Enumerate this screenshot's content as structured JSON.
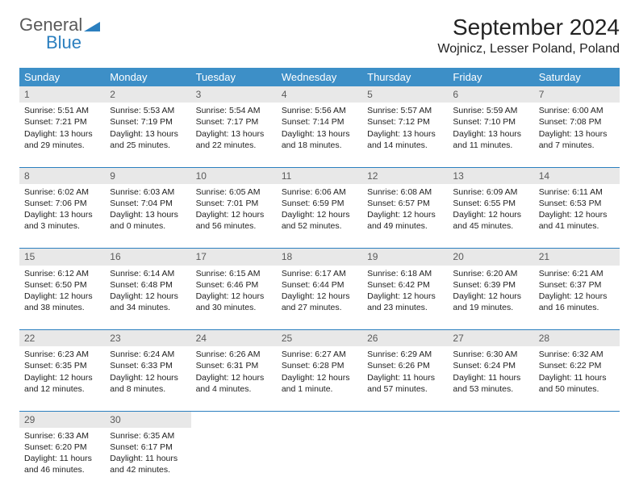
{
  "logo": {
    "part1": "General",
    "part2": "Blue"
  },
  "title": "September 2024",
  "location": "Wojnicz, Lesser Poland, Poland",
  "colors": {
    "header_bg": "#3d8fc7",
    "header_text": "#ffffff",
    "daynum_bg": "#e8e8e8",
    "daynum_text": "#5a5a5a",
    "rule": "#2b7fbf",
    "logo_gray": "#5a5a5a",
    "logo_blue": "#2b7fbf"
  },
  "weekdays": [
    "Sunday",
    "Monday",
    "Tuesday",
    "Wednesday",
    "Thursday",
    "Friday",
    "Saturday"
  ],
  "weeks": [
    [
      {
        "n": "1",
        "sunrise": "5:51 AM",
        "sunset": "7:21 PM",
        "daylight": "13 hours and 29 minutes."
      },
      {
        "n": "2",
        "sunrise": "5:53 AM",
        "sunset": "7:19 PM",
        "daylight": "13 hours and 25 minutes."
      },
      {
        "n": "3",
        "sunrise": "5:54 AM",
        "sunset": "7:17 PM",
        "daylight": "13 hours and 22 minutes."
      },
      {
        "n": "4",
        "sunrise": "5:56 AM",
        "sunset": "7:14 PM",
        "daylight": "13 hours and 18 minutes."
      },
      {
        "n": "5",
        "sunrise": "5:57 AM",
        "sunset": "7:12 PM",
        "daylight": "13 hours and 14 minutes."
      },
      {
        "n": "6",
        "sunrise": "5:59 AM",
        "sunset": "7:10 PM",
        "daylight": "13 hours and 11 minutes."
      },
      {
        "n": "7",
        "sunrise": "6:00 AM",
        "sunset": "7:08 PM",
        "daylight": "13 hours and 7 minutes."
      }
    ],
    [
      {
        "n": "8",
        "sunrise": "6:02 AM",
        "sunset": "7:06 PM",
        "daylight": "13 hours and 3 minutes."
      },
      {
        "n": "9",
        "sunrise": "6:03 AM",
        "sunset": "7:04 PM",
        "daylight": "13 hours and 0 minutes."
      },
      {
        "n": "10",
        "sunrise": "6:05 AM",
        "sunset": "7:01 PM",
        "daylight": "12 hours and 56 minutes."
      },
      {
        "n": "11",
        "sunrise": "6:06 AM",
        "sunset": "6:59 PM",
        "daylight": "12 hours and 52 minutes."
      },
      {
        "n": "12",
        "sunrise": "6:08 AM",
        "sunset": "6:57 PM",
        "daylight": "12 hours and 49 minutes."
      },
      {
        "n": "13",
        "sunrise": "6:09 AM",
        "sunset": "6:55 PM",
        "daylight": "12 hours and 45 minutes."
      },
      {
        "n": "14",
        "sunrise": "6:11 AM",
        "sunset": "6:53 PM",
        "daylight": "12 hours and 41 minutes."
      }
    ],
    [
      {
        "n": "15",
        "sunrise": "6:12 AM",
        "sunset": "6:50 PM",
        "daylight": "12 hours and 38 minutes."
      },
      {
        "n": "16",
        "sunrise": "6:14 AM",
        "sunset": "6:48 PM",
        "daylight": "12 hours and 34 minutes."
      },
      {
        "n": "17",
        "sunrise": "6:15 AM",
        "sunset": "6:46 PM",
        "daylight": "12 hours and 30 minutes."
      },
      {
        "n": "18",
        "sunrise": "6:17 AM",
        "sunset": "6:44 PM",
        "daylight": "12 hours and 27 minutes."
      },
      {
        "n": "19",
        "sunrise": "6:18 AM",
        "sunset": "6:42 PM",
        "daylight": "12 hours and 23 minutes."
      },
      {
        "n": "20",
        "sunrise": "6:20 AM",
        "sunset": "6:39 PM",
        "daylight": "12 hours and 19 minutes."
      },
      {
        "n": "21",
        "sunrise": "6:21 AM",
        "sunset": "6:37 PM",
        "daylight": "12 hours and 16 minutes."
      }
    ],
    [
      {
        "n": "22",
        "sunrise": "6:23 AM",
        "sunset": "6:35 PM",
        "daylight": "12 hours and 12 minutes."
      },
      {
        "n": "23",
        "sunrise": "6:24 AM",
        "sunset": "6:33 PM",
        "daylight": "12 hours and 8 minutes."
      },
      {
        "n": "24",
        "sunrise": "6:26 AM",
        "sunset": "6:31 PM",
        "daylight": "12 hours and 4 minutes."
      },
      {
        "n": "25",
        "sunrise": "6:27 AM",
        "sunset": "6:28 PM",
        "daylight": "12 hours and 1 minute."
      },
      {
        "n": "26",
        "sunrise": "6:29 AM",
        "sunset": "6:26 PM",
        "daylight": "11 hours and 57 minutes."
      },
      {
        "n": "27",
        "sunrise": "6:30 AM",
        "sunset": "6:24 PM",
        "daylight": "11 hours and 53 minutes."
      },
      {
        "n": "28",
        "sunrise": "6:32 AM",
        "sunset": "6:22 PM",
        "daylight": "11 hours and 50 minutes."
      }
    ],
    [
      {
        "n": "29",
        "sunrise": "6:33 AM",
        "sunset": "6:20 PM",
        "daylight": "11 hours and 46 minutes."
      },
      {
        "n": "30",
        "sunrise": "6:35 AM",
        "sunset": "6:17 PM",
        "daylight": "11 hours and 42 minutes."
      },
      null,
      null,
      null,
      null,
      null
    ]
  ],
  "labels": {
    "sunrise": "Sunrise:",
    "sunset": "Sunset:",
    "daylight": "Daylight:"
  }
}
